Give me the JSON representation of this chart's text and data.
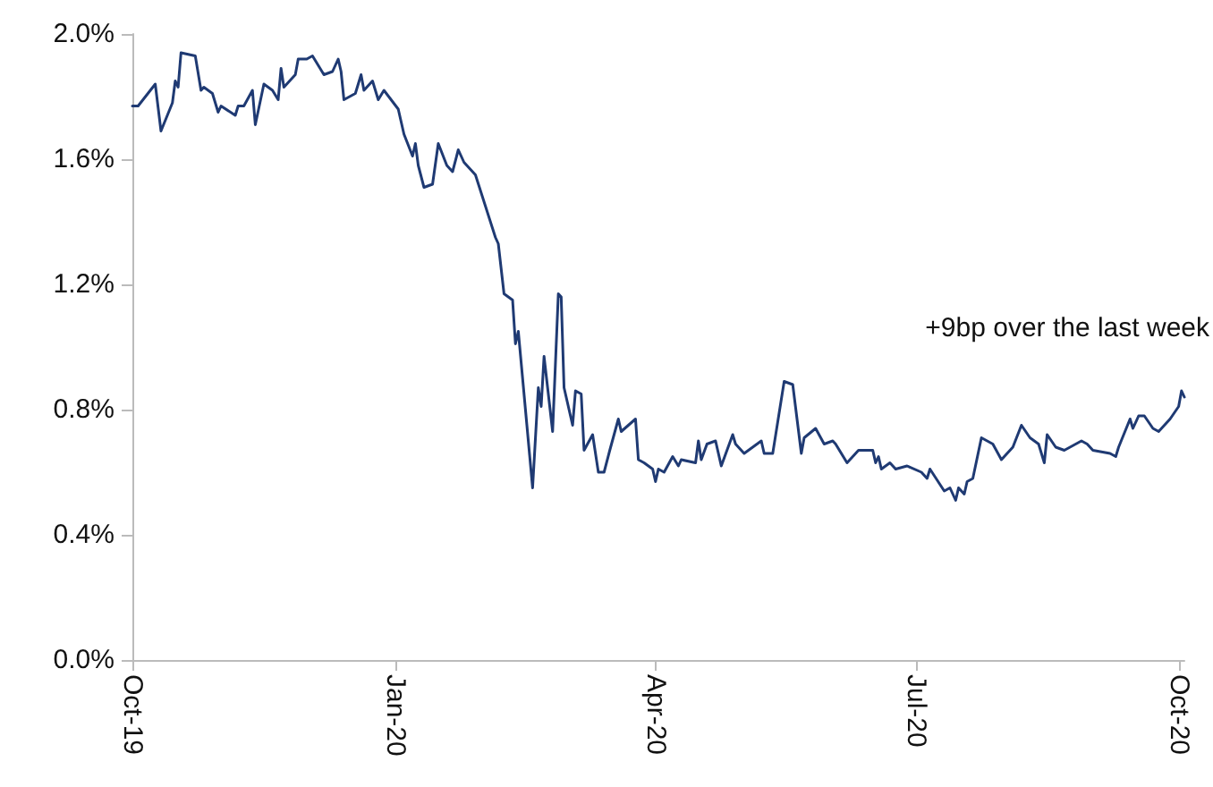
{
  "chart_data": {
    "type": "line",
    "marker": "none",
    "line_style": "solid",
    "grid": false,
    "annotations": [
      "+9bp over the last week"
    ],
    "xlim": [
      "2019-10-01",
      "2020-10-03"
    ],
    "xticks": [
      {
        "value": "2019-10-01",
        "label": "Oct-19"
      },
      {
        "value": "2020-01-01",
        "label": "Jan-20"
      },
      {
        "value": "2020-04-01",
        "label": "Apr-20"
      },
      {
        "value": "2020-07-01",
        "label": "Jul-20"
      },
      {
        "value": "2020-10-01",
        "label": "Oct-20"
      }
    ],
    "ylim": [
      0,
      2.0
    ],
    "yticks": [
      {
        "value": 0,
        "label": "0.0%"
      },
      {
        "value": 0.4,
        "label": "0.4%"
      },
      {
        "value": 0.8,
        "label": "0.8%"
      },
      {
        "value": 1.2,
        "label": "1.2%"
      },
      {
        "value": 1.6,
        "label": "1.6%"
      },
      {
        "value": 2.0,
        "label": "2.0%"
      }
    ],
    "x": [
      "2019-10-01",
      "2019-10-03",
      "2019-10-09",
      "2019-10-11",
      "2019-10-15",
      "2019-10-16",
      "2019-10-17",
      "2019-10-18",
      "2019-10-23",
      "2019-10-25",
      "2019-10-26",
      "2019-10-29",
      "2019-10-31",
      "2019-11-01",
      "2019-11-06",
      "2019-11-07",
      "2019-11-09",
      "2019-11-12",
      "2019-11-13",
      "2019-11-16",
      "2019-11-19",
      "2019-11-21",
      "2019-11-22",
      "2019-11-23",
      "2019-11-27",
      "2019-11-28",
      "2019-12-01",
      "2019-12-03",
      "2019-12-05",
      "2019-12-07",
      "2019-12-10",
      "2019-12-12",
      "2019-12-13",
      "2019-12-14",
      "2019-12-18",
      "2019-12-20",
      "2019-12-21",
      "2019-12-24",
      "2019-12-26",
      "2019-12-28",
      "2020-01-02",
      "2020-01-04",
      "2020-01-07",
      "2020-01-08",
      "2020-01-09",
      "2020-01-11",
      "2020-01-14",
      "2020-01-16",
      "2020-01-19",
      "2020-01-21",
      "2020-01-23",
      "2020-01-25",
      "2020-01-29",
      "2020-02-05",
      "2020-02-06",
      "2020-02-08",
      "2020-02-11",
      "2020-02-12",
      "2020-02-13",
      "2020-02-16",
      "2020-02-18",
      "2020-02-20",
      "2020-02-21",
      "2020-02-22",
      "2020-02-25",
      "2020-02-27",
      "2020-02-28",
      "2020-02-29",
      "2020-03-03",
      "2020-03-04",
      "2020-03-06",
      "2020-03-07",
      "2020-03-10",
      "2020-03-12",
      "2020-03-14",
      "2020-03-16",
      "2020-03-19",
      "2020-03-20",
      "2020-03-25",
      "2020-03-26",
      "2020-03-28",
      "2020-03-31",
      "2020-04-01",
      "2020-04-02",
      "2020-04-04",
      "2020-04-07",
      "2020-04-09",
      "2020-04-10",
      "2020-04-15",
      "2020-04-16",
      "2020-04-17",
      "2020-04-19",
      "2020-04-22",
      "2020-04-24",
      "2020-04-28",
      "2020-04-29",
      "2020-05-02",
      "2020-05-08",
      "2020-05-09",
      "2020-05-12",
      "2020-05-16",
      "2020-05-19",
      "2020-05-22",
      "2020-05-23",
      "2020-05-27",
      "2020-05-30",
      "2020-06-02",
      "2020-06-03",
      "2020-06-07",
      "2020-06-11",
      "2020-06-16",
      "2020-06-17",
      "2020-06-18",
      "2020-06-19",
      "2020-06-22",
      "2020-06-24",
      "2020-06-28",
      "2020-07-03",
      "2020-07-05",
      "2020-07-06",
      "2020-07-11",
      "2020-07-13",
      "2020-07-15",
      "2020-07-16",
      "2020-07-18",
      "2020-07-19",
      "2020-07-21",
      "2020-07-24",
      "2020-07-28",
      "2020-07-31",
      "2020-08-04",
      "2020-08-07",
      "2020-08-10",
      "2020-08-13",
      "2020-08-15",
      "2020-08-16",
      "2020-08-19",
      "2020-08-22",
      "2020-08-28",
      "2020-08-30",
      "2020-09-01",
      "2020-09-07",
      "2020-09-09",
      "2020-09-10",
      "2020-09-14",
      "2020-09-15",
      "2020-09-17",
      "2020-09-19",
      "2020-09-22",
      "2020-09-24",
      "2020-09-28",
      "2020-10-01",
      "2020-10-02",
      "2020-10-03"
    ],
    "series": [
      {
        "color": "#1f3a73",
        "values": [
          1.77,
          1.77,
          1.84,
          1.69,
          1.78,
          1.85,
          1.83,
          1.94,
          1.93,
          1.82,
          1.83,
          1.81,
          1.75,
          1.77,
          1.74,
          1.77,
          1.77,
          1.82,
          1.71,
          1.84,
          1.82,
          1.79,
          1.89,
          1.83,
          1.87,
          1.92,
          1.92,
          1.93,
          1.9,
          1.87,
          1.88,
          1.92,
          1.88,
          1.79,
          1.81,
          1.87,
          1.82,
          1.85,
          1.79,
          1.82,
          1.76,
          1.68,
          1.61,
          1.65,
          1.58,
          1.51,
          1.52,
          1.65,
          1.58,
          1.56,
          1.63,
          1.59,
          1.55,
          1.35,
          1.33,
          1.17,
          1.15,
          1.01,
          1.05,
          0.75,
          0.55,
          0.87,
          0.81,
          0.97,
          0.73,
          1.17,
          1.16,
          0.87,
          0.75,
          0.86,
          0.85,
          0.67,
          0.72,
          0.6,
          0.6,
          0.67,
          0.77,
          0.73,
          0.77,
          0.64,
          0.63,
          0.61,
          0.57,
          0.61,
          0.6,
          0.65,
          0.62,
          0.64,
          0.63,
          0.7,
          0.64,
          0.69,
          0.7,
          0.62,
          0.72,
          0.69,
          0.66,
          0.7,
          0.66,
          0.66,
          0.89,
          0.88,
          0.66,
          0.71,
          0.74,
          0.69,
          0.7,
          0.69,
          0.63,
          0.67,
          0.67,
          0.63,
          0.65,
          0.61,
          0.63,
          0.61,
          0.62,
          0.6,
          0.58,
          0.61,
          0.54,
          0.55,
          0.51,
          0.55,
          0.53,
          0.57,
          0.58,
          0.71,
          0.69,
          0.64,
          0.68,
          0.75,
          0.71,
          0.69,
          0.63,
          0.72,
          0.68,
          0.67,
          0.7,
          0.69,
          0.67,
          0.66,
          0.65,
          0.68,
          0.77,
          0.74,
          0.78,
          0.78,
          0.74,
          0.73,
          0.77,
          0.81,
          0.86,
          0.84
        ]
      }
    ]
  }
}
